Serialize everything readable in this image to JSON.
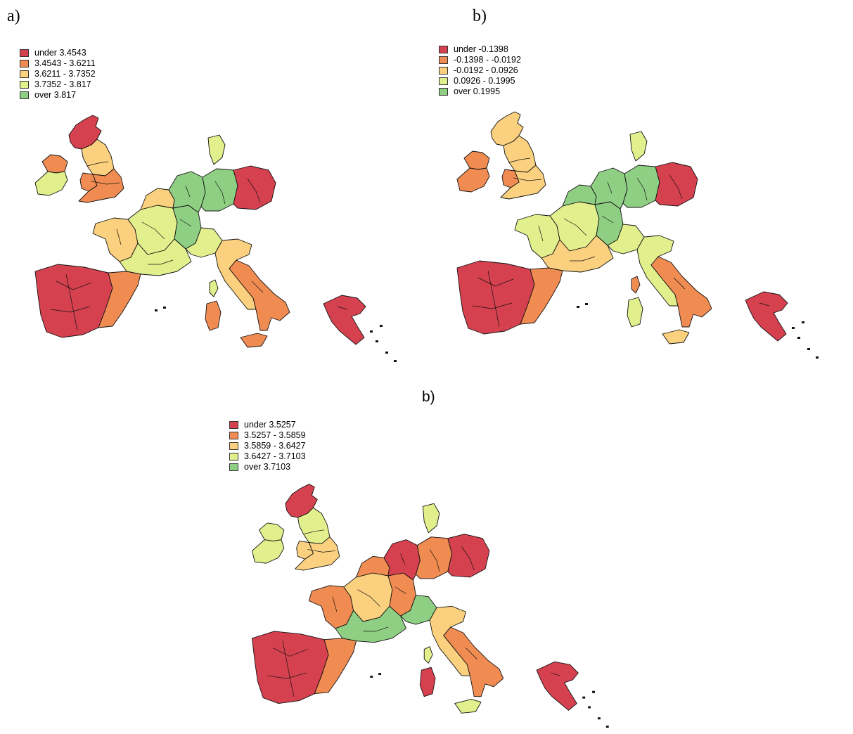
{
  "colors": {
    "c1": "#d6414f",
    "c2": "#f08c52",
    "c3": "#fbd17f",
    "c4": "#e2ef8d",
    "c5": "#8fcf84"
  },
  "panels": [
    {
      "label": "a)",
      "legend": [
        "under 3.4543",
        "3.4543 - 3.6211",
        "3.6211 - 3.7352",
        "3.7352 - 3.817",
        "over 3.817"
      ],
      "fills": {
        "scotland": "c1",
        "england_n": "c3",
        "england_s": "c2",
        "wales": "c2",
        "ireland_n": "c2",
        "ireland_s": "c4",
        "france_w": "c3",
        "france_c": "c4",
        "france_e": "c5",
        "france_s": "c4",
        "benelux": "c3",
        "germany_w": "c5",
        "germany_e": "c5",
        "denmark": "c4",
        "poland": "c1",
        "iberia_w": "c1",
        "iberia_e": "c2",
        "italy_n": "c3",
        "italy_s": "c2",
        "sardinia": "c2",
        "corsica": "c4",
        "sicily": "c2",
        "greece": "c1",
        "switzerland": "c4"
      }
    },
    {
      "label": "b)",
      "legend": [
        "under -0.1398",
        "-0.1398 - -0.0192",
        "-0.0192 - 0.0926",
        "0.0926 - 0.1995",
        "over 0.1995"
      ],
      "fills": {
        "scotland": "c3",
        "england_n": "c3",
        "england_s": "c3",
        "wales": "c2",
        "ireland_n": "c2",
        "ireland_s": "c2",
        "france_w": "c4",
        "france_c": "c4",
        "france_e": "c5",
        "france_s": "c3",
        "benelux": "c5",
        "germany_w": "c5",
        "germany_e": "c5",
        "denmark": "c4",
        "poland": "c1",
        "iberia_w": "c1",
        "iberia_e": "c2",
        "italy_n": "c4",
        "italy_s": "c2",
        "sardinia": "c4",
        "corsica": "c2",
        "sicily": "c3",
        "greece": "c1",
        "switzerland": "c4"
      }
    },
    {
      "label": "b)",
      "legend": [
        "under 3.5257",
        "3.5257 - 3.5859",
        "3.5859 - 3.6427",
        "3.6427 - 3.7103",
        "over 3.7103"
      ],
      "fills": {
        "scotland": "c1",
        "england_n": "c4",
        "england_s": "c3",
        "wales": "c3",
        "ireland_n": "c4",
        "ireland_s": "c4",
        "france_w": "c2",
        "france_c": "c3",
        "france_e": "c2",
        "france_s": "c5",
        "benelux": "c2",
        "germany_w": "c1",
        "germany_e": "c2",
        "denmark": "c4",
        "poland": "c1",
        "iberia_w": "c1",
        "iberia_e": "c2",
        "italy_n": "c3",
        "italy_s": "c2",
        "sardinia": "c1",
        "corsica": "c4",
        "sicily": "c4",
        "greece": "c1",
        "switzerland": "c5"
      }
    }
  ]
}
